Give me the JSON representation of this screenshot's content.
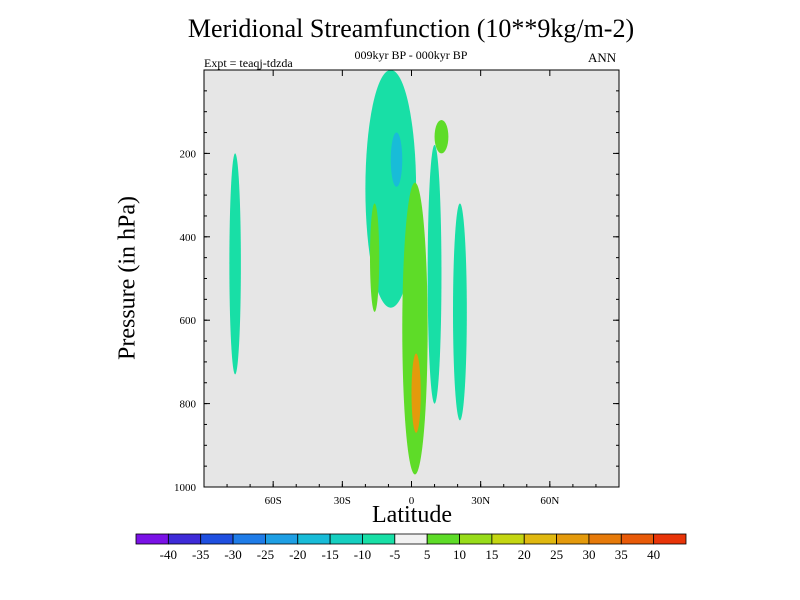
{
  "chart_data": {
    "type": "contour",
    "title": "Meridional Streamfunction (10**9kg/m-2)",
    "subtitle": "009kyr BP - 000kyr BP",
    "left_label": "Expt = teaqj-tdzda",
    "right_label": "ANN",
    "xlabel": "Latitude",
    "ylabel": "Pressure (in hPa)",
    "xlim": [
      -90,
      90
    ],
    "ylim": [
      1000,
      0
    ],
    "x_ticks": [
      {
        "value": -60,
        "label": "60S"
      },
      {
        "value": -30,
        "label": "30S"
      },
      {
        "value": 0,
        "label": "0"
      },
      {
        "value": 30,
        "label": "30N"
      },
      {
        "value": 60,
        "label": "60N"
      }
    ],
    "y_ticks": [
      {
        "value": 200,
        "label": "200"
      },
      {
        "value": 400,
        "label": "400"
      },
      {
        "value": 600,
        "label": "600"
      },
      {
        "value": 800,
        "label": "800"
      },
      {
        "value": 1000,
        "label": "1000"
      }
    ],
    "colorbar": {
      "levels": [
        -40,
        -35,
        -30,
        -25,
        -20,
        -15,
        -10,
        -5,
        5,
        10,
        15,
        20,
        25,
        30,
        35,
        40
      ],
      "colors": [
        "#7a12e6",
        "#3e2bd8",
        "#1f4fe0",
        "#1f7ce8",
        "#1e9fe4",
        "#18bcd8",
        "#16cfc0",
        "#18dfa6",
        "#f2f2f2",
        "#5edc28",
        "#98dc1a",
        "#c4d612",
        "#e0b810",
        "#e49a0c",
        "#e67a0a",
        "#e85a08",
        "#e83408"
      ]
    },
    "features": [
      {
        "name": "sh-pos-streamfunction-cell",
        "level": -5,
        "lat": [
          -79,
          -74
        ],
        "pressure": [
          200,
          730
        ]
      },
      {
        "name": "upper-neg-streamfunction-cell",
        "level": -5,
        "lat": [
          -20,
          2
        ],
        "pressure": [
          0,
          570
        ]
      },
      {
        "name": "upper-neg-core",
        "level": -15,
        "lat": [
          -9,
          -4
        ],
        "pressure": [
          150,
          280
        ]
      },
      {
        "name": "sh-subtropics-pos-band",
        "level": 5,
        "lat": [
          -18,
          -14
        ],
        "pressure": [
          320,
          580
        ]
      },
      {
        "name": "upper-pos-blob",
        "level": 5,
        "lat": [
          10,
          16
        ],
        "pressure": [
          120,
          200
        ]
      },
      {
        "name": "nh-neg-band-1",
        "level": -5,
        "lat": [
          7,
          13
        ],
        "pressure": [
          180,
          800
        ]
      },
      {
        "name": "nh-neg-band-2",
        "level": -5,
        "lat": [
          18,
          24
        ],
        "pressure": [
          320,
          840
        ]
      },
      {
        "name": "equatorial-pos-cell",
        "level": 5,
        "lat": [
          -4,
          7
        ],
        "pressure": [
          270,
          970
        ]
      },
      {
        "name": "equatorial-pos-core",
        "level": 25,
        "lat": [
          0,
          4
        ],
        "pressure": [
          680,
          870
        ]
      }
    ]
  }
}
